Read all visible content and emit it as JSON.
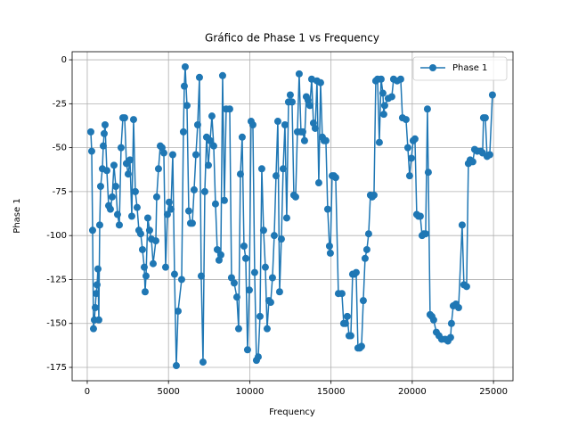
{
  "chart_data": {
    "type": "line",
    "title": "Gráfico de Phase 1 vs Frequency",
    "x_label": "Frequency",
    "y_label": "Phase 1",
    "grid": true,
    "legend": "upper right",
    "xlim": [
      -930,
      26200
    ],
    "ylim": [
      -182.6,
      4.6
    ],
    "xticks": [
      0,
      5000,
      10000,
      15000,
      20000,
      25000
    ],
    "yticks": [
      -175,
      -150,
      -125,
      -100,
      -75,
      -50,
      -25,
      0
    ],
    "x": [
      219,
      274,
      329,
      384,
      438,
      493,
      548,
      603,
      658,
      712,
      767,
      822,
      932,
      986,
      1041,
      1096,
      1206,
      1315,
      1425,
      1534,
      1644,
      1754,
      1863,
      1973,
      2082,
      2192,
      2302,
      2411,
      2521,
      2630,
      2740,
      2850,
      2959,
      3069,
      3178,
      3288,
      3398,
      3507,
      3562,
      3617,
      3726,
      3836,
      3946,
      4055,
      4220,
      4274,
      4384,
      4494,
      4603,
      4713,
      4822,
      4932,
      5042,
      5151,
      5261,
      5370,
      5480,
      5590,
      5809,
      5918,
      5973,
      6028,
      6138,
      6247,
      6357,
      6466,
      6576,
      6686,
      6795,
      6905,
      7014,
      7124,
      7234,
      7343,
      7453,
      7562,
      7672,
      7782,
      7891,
      8001,
      8110,
      8220,
      8330,
      8439,
      8549,
      8768,
      8878,
      9042,
      9206,
      9316,
      9426,
      9535,
      9645,
      9754,
      9864,
      9974,
      10083,
      10193,
      10302,
      10412,
      10522,
      10631,
      10741,
      10850,
      10960,
      11070,
      11179,
      11289,
      11398,
      11508,
      11618,
      11727,
      11837,
      11946,
      12056,
      12166,
      12275,
      12385,
      12494,
      12604,
      12714,
      12823,
      12933,
      13042,
      13152,
      13262,
      13371,
      13481,
      13590,
      13700,
      13810,
      13919,
      14029,
      14138,
      14248,
      14358,
      14467,
      14577,
      14686,
      14796,
      14906,
      14960,
      15070,
      15180,
      15289,
      15454,
      15673,
      15782,
      15892,
      16002,
      16111,
      16221,
      16330,
      16440,
      16550,
      16659,
      16769,
      16878,
      16988,
      17098,
      17207,
      17317,
      17426,
      17536,
      17646,
      17755,
      17865,
      17974,
      18084,
      18194,
      18248,
      18303,
      18522,
      18742,
      18851,
      19070,
      19290,
      19399,
      19618,
      19728,
      19838,
      19947,
      20057,
      20166,
      20276,
      20386,
      20495,
      20605,
      20714,
      20824,
      20934,
      20988,
      21098,
      21208,
      21317,
      21482,
      21646,
      21810,
      22030,
      22194,
      22358,
      22413,
      22523,
      22687,
      22852,
      23071,
      23180,
      23345,
      23454,
      23564,
      23728,
      23838,
      24002,
      24222,
      24331,
      24386,
      24496,
      24606,
      24770,
      24934
    ],
    "series": [
      {
        "name": "Phase 1",
        "color": "#1f77b4",
        "values": [
          -41,
          -52,
          -97,
          -153,
          -148,
          -141,
          -133,
          -128,
          -119,
          -148,
          -94,
          -72,
          -62,
          -49,
          -42,
          -37,
          -63,
          -83,
          -85,
          -78,
          -60,
          -72,
          -88,
          -94,
          -50,
          -33,
          -33,
          -59,
          -65,
          -57,
          -89,
          -34,
          -75,
          -84,
          -97,
          -99,
          -108,
          -118,
          -132,
          -123,
          -90,
          -97,
          -102,
          -116,
          -103,
          -78,
          -62,
          -49,
          -50,
          -53,
          -118,
          -88,
          -81,
          -85,
          -54,
          -122,
          -174,
          -143,
          -125,
          -41,
          -15,
          -4,
          -26,
          -86,
          -93,
          -93,
          -74,
          -54,
          -37,
          -10,
          -123,
          -172,
          -75,
          -44,
          -60,
          -46,
          -32,
          -49,
          -82,
          -108,
          -114,
          -111,
          -9,
          -80,
          -28,
          -28,
          -124,
          -127,
          -135,
          -153,
          -65,
          -44,
          -106,
          -113,
          -165,
          -131,
          -35,
          -37,
          -121,
          -171,
          -169,
          -146,
          -62,
          -97,
          -118,
          -153,
          -137,
          -138,
          -124,
          -100,
          -66,
          -35,
          -132,
          -102,
          -62,
          -37,
          -90,
          -24,
          -20,
          -24,
          -77,
          -78,
          -41,
          -8,
          -41,
          -41,
          -46,
          -21,
          -23,
          -26,
          -11,
          -36,
          -39,
          -12,
          -70,
          -13,
          -44,
          -46,
          -46,
          -85,
          -106,
          -110,
          -66,
          -66,
          -67,
          -133,
          -133,
          -150,
          -150,
          -146,
          -157,
          -157,
          -122,
          -122,
          -121,
          -164,
          -164,
          -163,
          -137,
          -113,
          -108,
          -99,
          -77,
          -78,
          -77,
          -12,
          -11,
          -47,
          -11,
          -19,
          -31,
          -26,
          -22,
          -21,
          -11,
          -12,
          -11,
          -33,
          -34,
          -50,
          -66,
          -56,
          -46,
          -45,
          -88,
          -89,
          -89,
          -100,
          -99,
          -99,
          -28,
          -64,
          -145,
          -146,
          -148,
          -155,
          -157,
          -159,
          -159,
          -160,
          -158,
          -150,
          -140,
          -139,
          -141,
          -94,
          -128,
          -129,
          -59,
          -57,
          -58,
          -51,
          -52,
          -52,
          -53,
          -33,
          -33,
          -55,
          -54,
          -20
        ]
      }
    ]
  }
}
